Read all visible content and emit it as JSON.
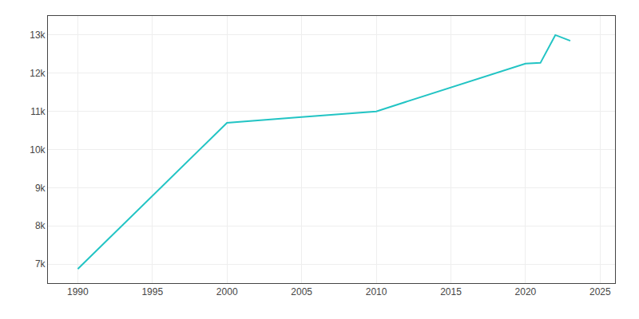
{
  "chart_data": {
    "type": "line",
    "x": [
      1990,
      2000,
      2005,
      2010,
      2020,
      2021,
      2022,
      2023
    ],
    "values": [
      6870,
      10700,
      10850,
      11000,
      12250,
      12270,
      13000,
      12850
    ],
    "color": "#22c4c4",
    "xlim": [
      1988,
      2026
    ],
    "ylim": [
      6500,
      13500
    ],
    "xticks": [
      1990,
      1995,
      2000,
      2005,
      2010,
      2015,
      2020,
      2025
    ],
    "yticks": [
      {
        "value": 7000,
        "label": "7k"
      },
      {
        "value": 8000,
        "label": "8k"
      },
      {
        "value": 9000,
        "label": "9k"
      },
      {
        "value": 10000,
        "label": "10k"
      },
      {
        "value": 11000,
        "label": "11k"
      },
      {
        "value": 12000,
        "label": "12k"
      },
      {
        "value": 13000,
        "label": "13k"
      }
    ],
    "grid": true
  }
}
